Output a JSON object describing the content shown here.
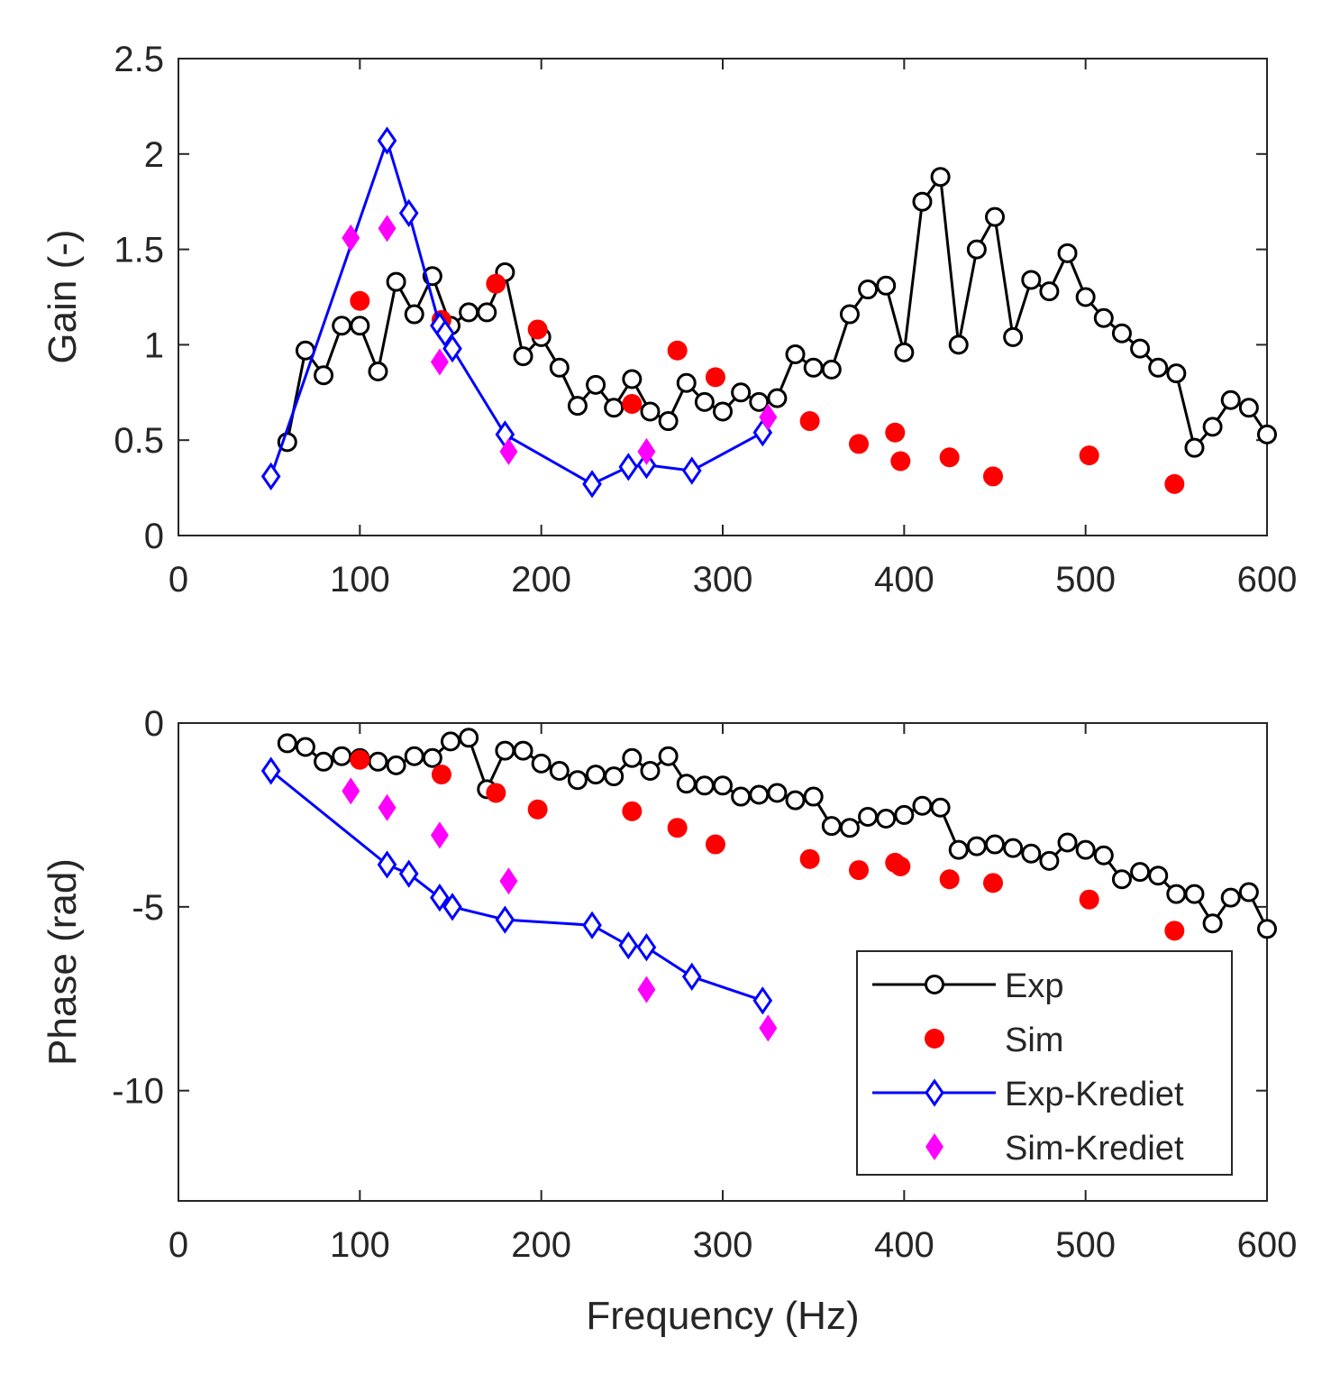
{
  "colors": {
    "exp": "#000000",
    "sim": "#ff0000",
    "exp_krediet": "#0000ff",
    "sim_krediet": "#ff00ff",
    "axis": "#262626"
  },
  "legend": {
    "entries": [
      "Exp",
      "Sim",
      "Exp-Krediet",
      "Sim-Krediet"
    ]
  },
  "chart_data": [
    {
      "type": "line",
      "name": "gain",
      "ylabel": "Gain (-)",
      "xlabel": "",
      "xlim": [
        0,
        600
      ],
      "ylim": [
        0,
        2.5
      ],
      "xticks": [
        0,
        100,
        200,
        300,
        400,
        500,
        600
      ],
      "xtick_labels": [
        "0",
        "100",
        "200",
        "300",
        "400",
        "500",
        "600"
      ],
      "yticks": [
        0,
        0.5,
        1,
        1.5,
        2,
        2.5
      ],
      "ytick_labels": [
        "0",
        "0.5",
        "1",
        "1.5",
        "2",
        "2.5"
      ],
      "series": [
        {
          "name": "Exp",
          "marker": "circle-open",
          "line": true,
          "x": [
            60,
            70,
            80,
            90,
            100,
            110,
            120,
            130,
            140,
            150,
            160,
            170,
            180,
            190,
            200,
            210,
            220,
            230,
            240,
            250,
            260,
            270,
            280,
            290,
            300,
            310,
            320,
            330,
            340,
            350,
            360,
            370,
            380,
            390,
            400,
            410,
            420,
            430,
            440,
            450,
            460,
            470,
            480,
            490,
            500,
            510,
            520,
            530,
            540,
            550,
            560,
            570,
            580,
            590,
            600
          ],
          "y": [
            0.49,
            0.97,
            0.84,
            1.1,
            1.1,
            0.86,
            1.33,
            1.16,
            1.36,
            1.1,
            1.17,
            1.17,
            1.38,
            0.94,
            1.04,
            0.88,
            0.68,
            0.79,
            0.67,
            0.82,
            0.65,
            0.6,
            0.8,
            0.7,
            0.65,
            0.75,
            0.7,
            0.72,
            0.95,
            0.88,
            0.87,
            1.16,
            1.29,
            1.31,
            0.96,
            1.75,
            1.88,
            1.0,
            1.5,
            1.67,
            1.04,
            1.34,
            1.28,
            1.48,
            1.25,
            1.14,
            1.06,
            0.98,
            0.88,
            0.85,
            0.46,
            0.57,
            0.71,
            0.67,
            0.53
          ]
        },
        {
          "name": "Sim",
          "marker": "circle-filled",
          "line": false,
          "x": [
            100,
            145,
            175,
            198,
            250,
            275,
            296,
            348,
            375,
            395,
            398,
            425,
            449,
            502,
            549
          ],
          "y": [
            1.23,
            1.13,
            1.32,
            1.08,
            0.69,
            0.97,
            0.83,
            0.6,
            0.48,
            0.54,
            0.39,
            0.41,
            0.31,
            0.42,
            0.27
          ]
        },
        {
          "name": "Exp-Krediet",
          "marker": "diamond-open",
          "line": true,
          "x": [
            51,
            115,
            127,
            144,
            147,
            151,
            180,
            228,
            248,
            258,
            283,
            322
          ],
          "y": [
            0.31,
            2.07,
            1.69,
            1.1,
            1.06,
            0.98,
            0.53,
            0.27,
            0.36,
            0.37,
            0.34,
            0.54
          ]
        },
        {
          "name": "Sim-Krediet",
          "marker": "diamond-filled",
          "line": false,
          "x": [
            95,
            115,
            144,
            182,
            258,
            325
          ],
          "y": [
            1.56,
            1.61,
            0.91,
            0.44,
            0.44,
            0.62
          ]
        }
      ]
    },
    {
      "type": "line",
      "name": "phase",
      "ylabel": "Phase (rad)",
      "xlabel": "Frequency (Hz)",
      "xlim": [
        0,
        600
      ],
      "ylim": [
        -13,
        0
      ],
      "xticks": [
        0,
        100,
        200,
        300,
        400,
        500,
        600
      ],
      "xtick_labels": [
        "0",
        "100",
        "200",
        "300",
        "400",
        "500",
        "600"
      ],
      "yticks": [
        0,
        -5,
        -10
      ],
      "ytick_labels": [
        "0",
        "-5",
        "-10"
      ],
      "series": [
        {
          "name": "Exp",
          "marker": "circle-open",
          "line": true,
          "x": [
            60,
            70,
            80,
            90,
            100,
            110,
            120,
            130,
            140,
            150,
            160,
            170,
            180,
            190,
            200,
            210,
            220,
            230,
            240,
            250,
            260,
            270,
            280,
            290,
            300,
            310,
            320,
            330,
            340,
            350,
            360,
            370,
            380,
            390,
            400,
            410,
            420,
            430,
            440,
            450,
            460,
            470,
            480,
            490,
            500,
            510,
            520,
            530,
            540,
            550,
            560,
            570,
            580,
            590,
            600
          ],
          "y": [
            -0.55,
            -0.65,
            -1.05,
            -0.9,
            -0.95,
            -1.05,
            -1.15,
            -0.9,
            -0.95,
            -0.5,
            -0.4,
            -1.8,
            -0.75,
            -0.75,
            -1.1,
            -1.3,
            -1.55,
            -1.4,
            -1.45,
            -0.95,
            -1.3,
            -0.9,
            -1.65,
            -1.7,
            -1.7,
            -2.0,
            -1.95,
            -1.9,
            -2.1,
            -2.0,
            -2.8,
            -2.85,
            -2.55,
            -2.6,
            -2.5,
            -2.25,
            -2.3,
            -3.45,
            -3.35,
            -3.3,
            -3.4,
            -3.55,
            -3.75,
            -3.25,
            -3.45,
            -3.6,
            -4.25,
            -4.05,
            -4.15,
            -4.65,
            -4.65,
            -5.45,
            -4.75,
            -4.6,
            -5.6
          ]
        },
        {
          "name": "Sim",
          "marker": "circle-filled",
          "line": false,
          "x": [
            100,
            145,
            175,
            198,
            250,
            275,
            296,
            348,
            375,
            395,
            398,
            425,
            449,
            502,
            549
          ],
          "y": [
            -1.0,
            -1.4,
            -1.9,
            -2.35,
            -2.4,
            -2.85,
            -3.3,
            -3.7,
            -4.0,
            -3.8,
            -3.9,
            -4.25,
            -4.35,
            -4.8,
            -5.65
          ]
        },
        {
          "name": "Exp-Krediet",
          "marker": "diamond-open",
          "line": true,
          "x": [
            51,
            115,
            127,
            144,
            151,
            180,
            228,
            248,
            258,
            283,
            322
          ],
          "y": [
            -1.3,
            -3.85,
            -4.1,
            -4.75,
            -5.0,
            -5.35,
            -5.5,
            -6.05,
            -6.1,
            -6.9,
            -7.55
          ]
        },
        {
          "name": "Sim-Krediet",
          "marker": "diamond-filled",
          "line": false,
          "x": [
            95,
            115,
            144,
            182,
            258,
            325
          ],
          "y": [
            -1.85,
            -2.3,
            -3.05,
            -4.3,
            -7.25,
            -8.3
          ]
        }
      ]
    }
  ]
}
